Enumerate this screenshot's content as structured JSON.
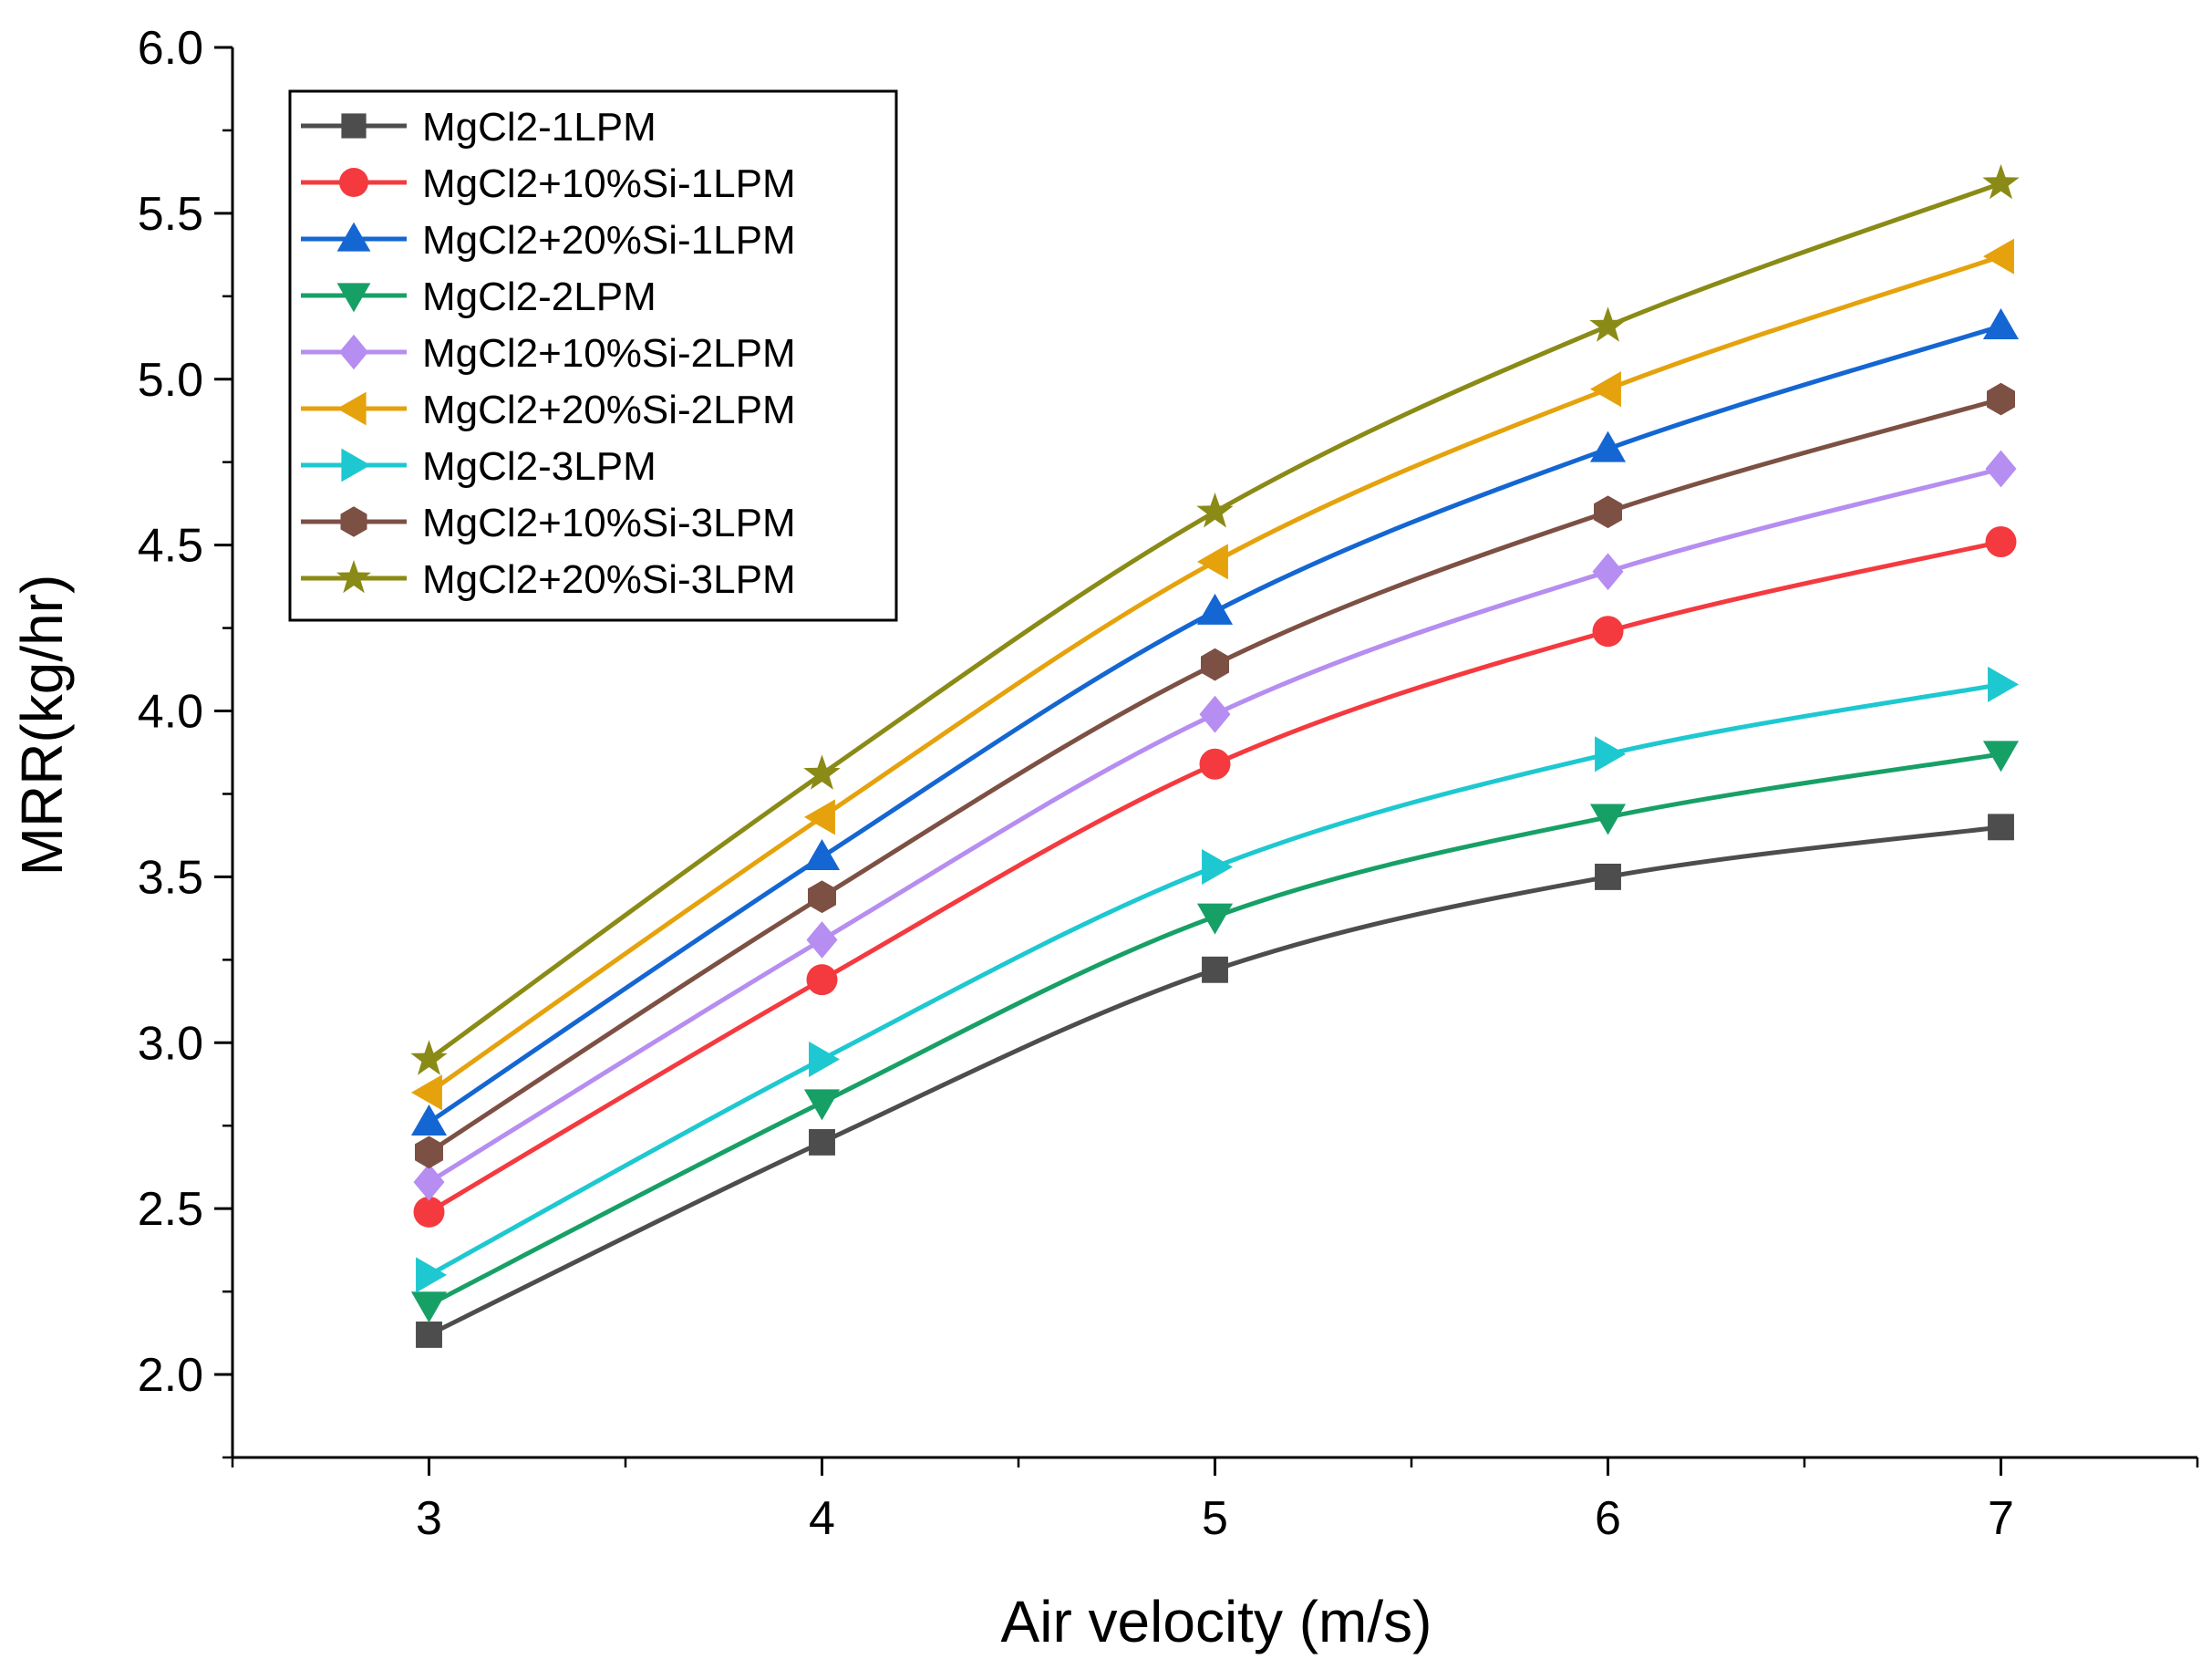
{
  "chart_data": {
    "type": "line",
    "title": "",
    "xlabel": "Air velocity (m/s)",
    "ylabel": "MRR(kg/hr)",
    "xlim": [
      2.5,
      7.5
    ],
    "ylim": [
      1.75,
      6.0
    ],
    "x_ticks": [
      3,
      4,
      5,
      6,
      7
    ],
    "x_tick_labels": [
      "3",
      "4",
      "5",
      "6",
      "7"
    ],
    "y_ticks": [
      2.0,
      2.5,
      3.0,
      3.5,
      4.0,
      4.5,
      5.0,
      5.5,
      6.0
    ],
    "y_tick_labels": [
      "2.0",
      "2.5",
      "3.0",
      "3.5",
      "4.0",
      "4.5",
      "5.0",
      "5.5",
      "6.0"
    ],
    "grid": false,
    "legend_position": "top-left",
    "x": [
      3,
      4,
      5,
      6,
      7
    ],
    "series": [
      {
        "name": "MgCl2-1LPM",
        "marker": "square",
        "color": "#4d4d4d",
        "values": [
          2.12,
          2.7,
          3.22,
          3.5,
          3.65
        ]
      },
      {
        "name": "MgCl2+10%Si-1LPM",
        "marker": "circle",
        "color": "#f43a3f",
        "values": [
          2.49,
          3.19,
          3.84,
          4.24,
          4.51
        ]
      },
      {
        "name": "MgCl2+20%Si-1LPM",
        "marker": "triangle-up",
        "color": "#1466d2",
        "values": [
          2.76,
          3.56,
          4.3,
          4.79,
          5.16
        ]
      },
      {
        "name": "MgCl2-2LPM",
        "marker": "triangle-down",
        "color": "#17a066",
        "values": [
          2.21,
          2.82,
          3.38,
          3.68,
          3.87
        ]
      },
      {
        "name": "MgCl2+10%Si-2LPM",
        "marker": "diamond",
        "color": "#b68df0",
        "values": [
          2.58,
          3.31,
          3.99,
          4.42,
          4.73
        ]
      },
      {
        "name": "MgCl2+20%Si-2LPM",
        "marker": "triangle-left",
        "color": "#e5a20c",
        "values": [
          2.85,
          3.68,
          4.45,
          4.97,
          5.37
        ]
      },
      {
        "name": "MgCl2-3LPM",
        "marker": "triangle-right",
        "color": "#1ec8d0",
        "values": [
          2.3,
          2.95,
          3.53,
          3.87,
          4.08
        ]
      },
      {
        "name": "MgCl2+10%Si-3LPM",
        "marker": "hexagon",
        "color": "#7d5044",
        "values": [
          2.67,
          3.44,
          4.14,
          4.6,
          4.94
        ]
      },
      {
        "name": "MgCl2+20%Si-3LPM",
        "marker": "star",
        "color": "#8a8a16",
        "values": [
          2.95,
          3.81,
          4.6,
          5.16,
          5.59
        ]
      }
    ]
  }
}
